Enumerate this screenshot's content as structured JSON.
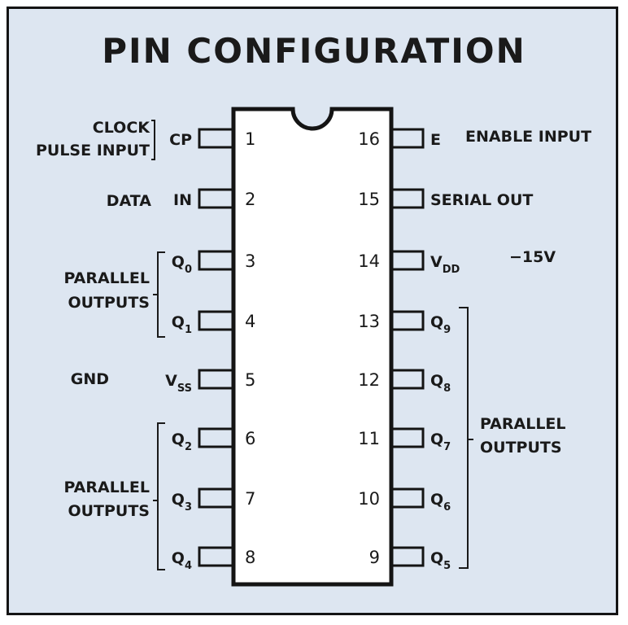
{
  "title": "PIN CONFIGURATION",
  "colors": {
    "background": "#dde6f1",
    "ink": "#1a1a1a",
    "chip": "#ffffff"
  },
  "left_pins": [
    {
      "number": "1",
      "signal": "CP",
      "sub": ""
    },
    {
      "number": "2",
      "signal": "IN",
      "sub": ""
    },
    {
      "number": "3",
      "signal": "Q",
      "sub": "0"
    },
    {
      "number": "4",
      "signal": "Q",
      "sub": "1"
    },
    {
      "number": "5",
      "signal": "V",
      "sub": "SS"
    },
    {
      "number": "6",
      "signal": "Q",
      "sub": "2"
    },
    {
      "number": "7",
      "signal": "Q",
      "sub": "3"
    },
    {
      "number": "8",
      "signal": "Q",
      "sub": "4"
    }
  ],
  "right_pins": [
    {
      "number": "16",
      "signal": "E",
      "sub": ""
    },
    {
      "number": "15",
      "signal": "SERIAL OUT",
      "sub": ""
    },
    {
      "number": "14",
      "signal": "V",
      "sub": "DD"
    },
    {
      "number": "13",
      "signal": "Q",
      "sub": "9"
    },
    {
      "number": "12",
      "signal": "Q",
      "sub": "8"
    },
    {
      "number": "11",
      "signal": "Q",
      "sub": "7"
    },
    {
      "number": "10",
      "signal": "Q",
      "sub": "6"
    },
    {
      "number": "9",
      "signal": "Q",
      "sub": "5"
    }
  ],
  "notes": {
    "clock_line1": "CLOCK",
    "clock_line2": "PULSE INPUT",
    "data": "DATA",
    "parallel_line1": "PARALLEL",
    "parallel_line2": "OUTPUTS",
    "gnd": "GND",
    "enable": "ENABLE INPUT",
    "vdd_value": "−15V"
  }
}
